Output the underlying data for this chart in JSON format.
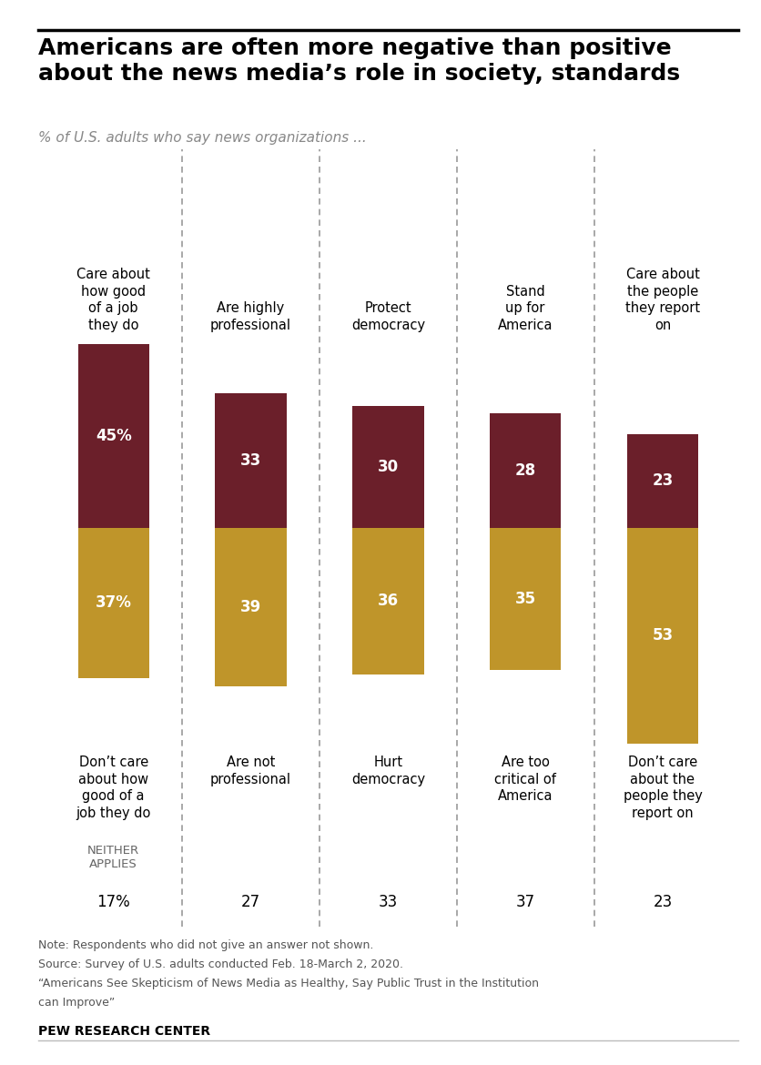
{
  "title": "Americans are often more negative than positive\nabout the news media’s role in society, standards",
  "subtitle": "% of U.S. adults who say news organizations ...",
  "top_labels": [
    "Care about\nhow good\nof a job\nthey do",
    "Are highly\nprofessional",
    "Protect\ndemocracy",
    "Stand\nup for\nAmerica",
    "Care about\nthe people\nthey report\non"
  ],
  "bottom_labels": [
    "Don’t care\nabout how\ngood of a\njob they do",
    "Are not\nprofessional",
    "Hurt\ndemocracy",
    "Are too\ncritical of\nAmerica",
    "Don’t care\nabout the\npeople they\nreport on"
  ],
  "top_values": [
    45,
    33,
    30,
    28,
    23
  ],
  "bottom_values": [
    37,
    39,
    36,
    35,
    53
  ],
  "neither_label": "NEITHER\nAPPLIES",
  "neither_values": [
    "17%",
    "27",
    "33",
    "37",
    "23"
  ],
  "top_value_labels": [
    "45%",
    "33",
    "30",
    "28",
    "23"
  ],
  "bottom_value_labels": [
    "37%",
    "39",
    "36",
    "35",
    "53"
  ],
  "top_color": "#6b1f2a",
  "bottom_color": "#bf952a",
  "note_lines": [
    "Note: Respondents who did not give an answer not shown.",
    "Source: Survey of U.S. adults conducted Feb. 18-March 2, 2020.",
    "“Americans See Skepticism of News Media as Healthy, Say Public Trust in the Institution",
    "can Improve”"
  ],
  "source_label": "PEW RESEARCH CENTER",
  "background_color": "#ffffff"
}
